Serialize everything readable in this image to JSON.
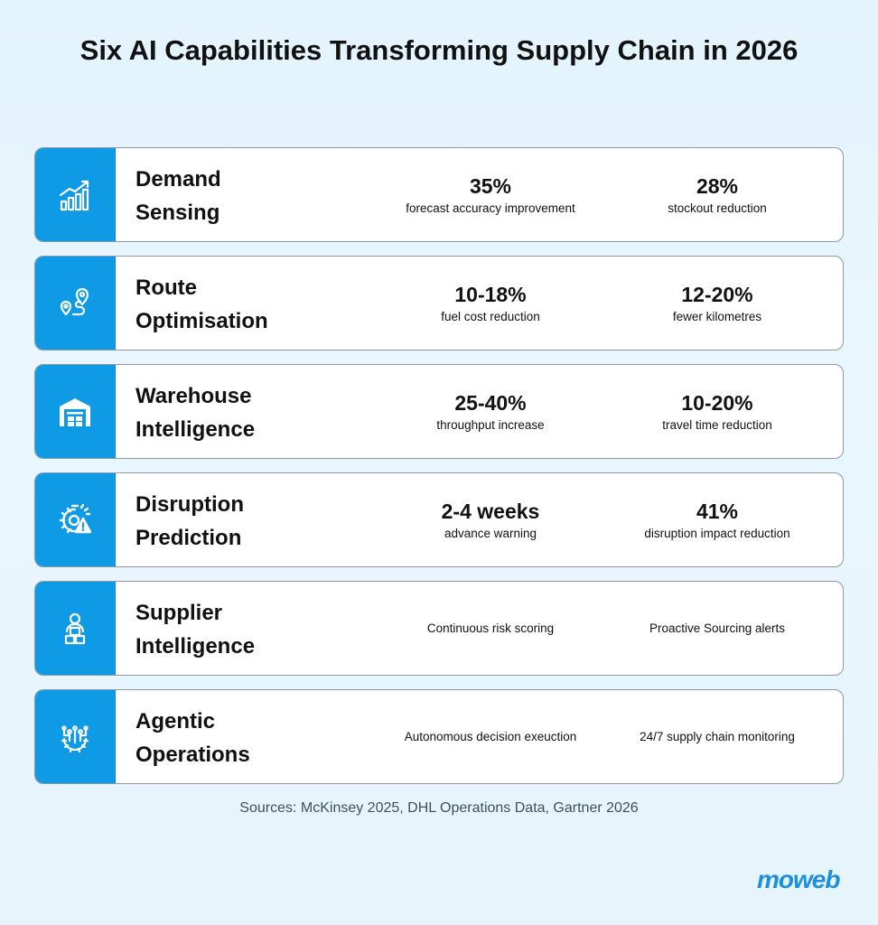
{
  "title": "Six AI Capabilities Transforming Supply Chain in 2026",
  "accent_color": "#0e9ae4",
  "rows": [
    {
      "icon": "growth-chart-icon",
      "name_line1": "Demand",
      "name_line2": "Sensing",
      "stat1_value": "35%",
      "stat1_label": "forecast accuracy improvement",
      "stat2_value": "28%",
      "stat2_label": "stockout reduction"
    },
    {
      "icon": "route-pin-icon",
      "name_line1": "Route",
      "name_line2": "Optimisation",
      "stat1_value": "10-18%",
      "stat1_label": "fuel cost reduction",
      "stat2_value": "12-20%",
      "stat2_label": "fewer kilometres"
    },
    {
      "icon": "warehouse-icon",
      "name_line1": "Warehouse",
      "name_line2": "Intelligence",
      "stat1_value": "25-40%",
      "stat1_label": "throughput increase",
      "stat2_value": "10-20%",
      "stat2_label": "travel time reduction"
    },
    {
      "icon": "gear-warning-icon",
      "name_line1": "Disruption",
      "name_line2": "Prediction",
      "stat1_value": "2-4 weeks",
      "stat1_label": "advance warning",
      "stat2_value": "41%",
      "stat2_label": "disruption impact reduction"
    },
    {
      "icon": "supplier-boxes-icon",
      "name_line1": "Supplier",
      "name_line2": "Intelligence",
      "stat1_value": "",
      "stat1_label": "Continuous risk scoring",
      "stat2_value": "",
      "stat2_label": "Proactive Sourcing alerts"
    },
    {
      "icon": "ai-gear-icon",
      "name_line1": "Agentic",
      "name_line2": "Operations",
      "stat1_value": "",
      "stat1_label": "Autonomous decision exeuction",
      "stat2_value": "",
      "stat2_label": "24/7 supply chain monitoring"
    }
  ],
  "sources": "Sources: McKinsey 2025, DHL Operations Data, Gartner 2026",
  "logo": "moweb"
}
